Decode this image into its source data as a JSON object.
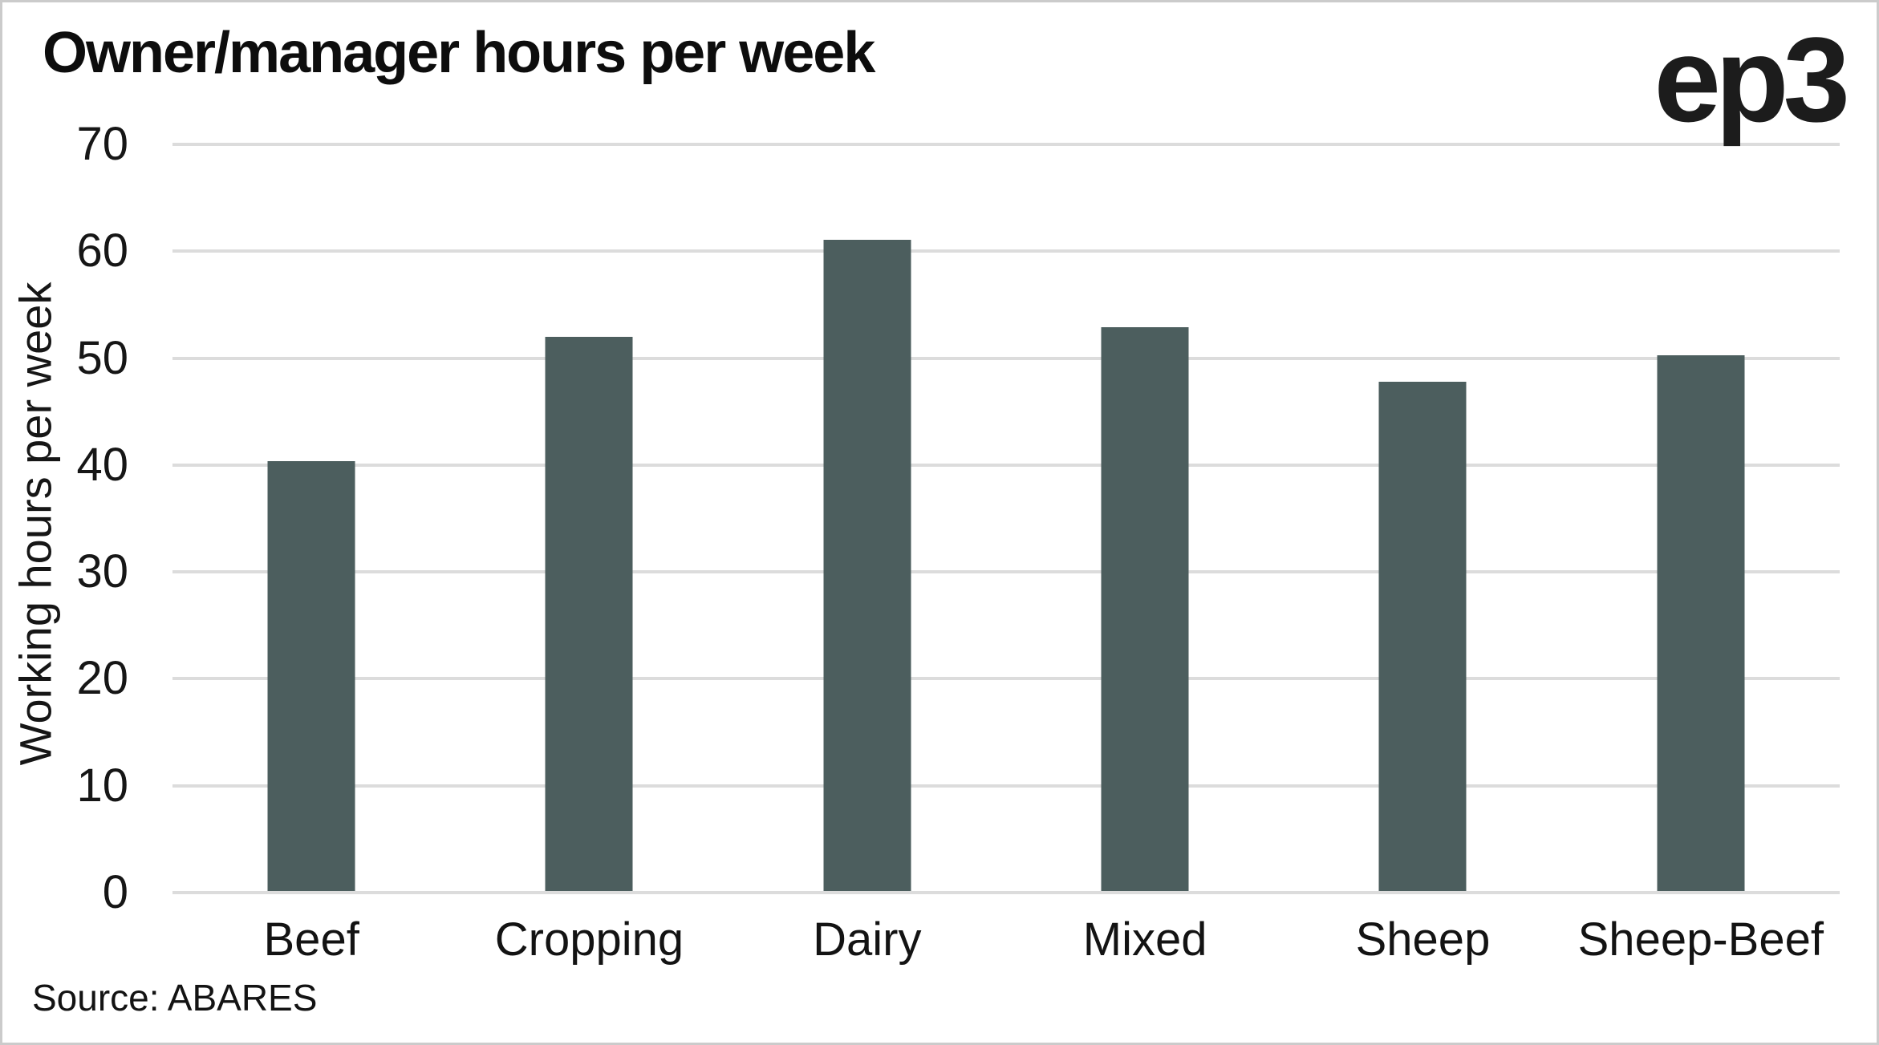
{
  "header": {
    "title": "Owner/manager hours per week",
    "logo_text": "ep3"
  },
  "source_note": "Source: ABARES",
  "colors": {
    "bar": "#4c5e5e",
    "gridline": "#dcdcdc",
    "frame_border": "#cbcbcb",
    "text": "#111111"
  },
  "chart_data": {
    "type": "bar",
    "title": "Owner/manager hours per week",
    "categories": [
      "Beef",
      "Cropping",
      "Dairy",
      "Mixed",
      "Sheep",
      "Sheep-Beef"
    ],
    "values": [
      40.4,
      52.0,
      61.1,
      52.9,
      47.8,
      50.3
    ],
    "xlabel": "",
    "ylabel": "Working hours per week",
    "ylim": [
      0,
      70
    ],
    "yticks": [
      0,
      10,
      20,
      30,
      40,
      50,
      60,
      70
    ],
    "grid": true,
    "legend": "none",
    "bar_color": "#4c5e5e"
  }
}
